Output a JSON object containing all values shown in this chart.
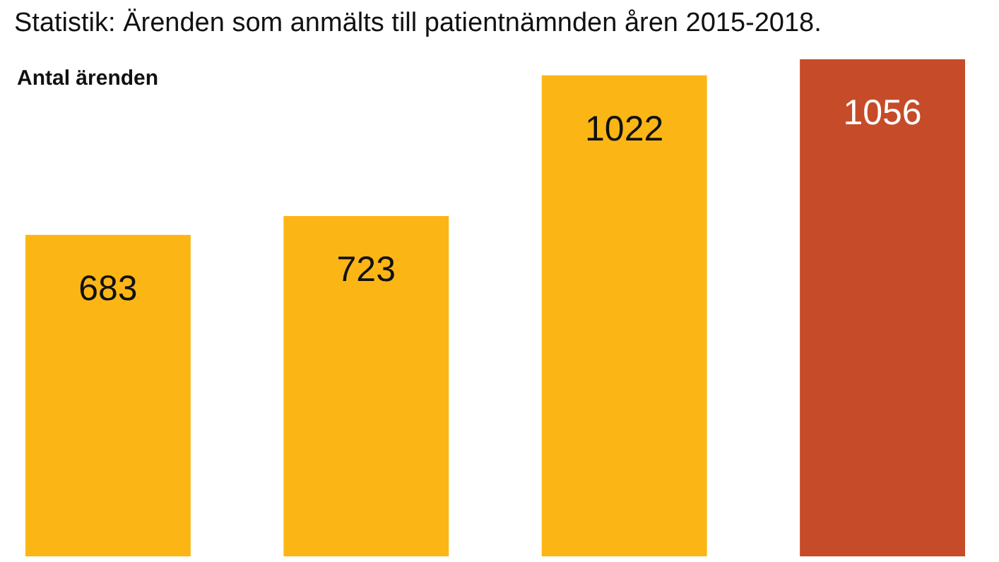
{
  "chart_data": {
    "type": "bar",
    "title": "Statistik: Ärenden som anmälts till patientnämnden åren 2015-2018.",
    "ylabel": "Antal ärenden",
    "categories": [
      null,
      null,
      null,
      null
    ],
    "values": [
      683,
      723,
      1022,
      1056
    ],
    "colors": [
      "#fbb615",
      "#fbb615",
      "#fbb615",
      "#c64b28"
    ],
    "data_labels": true
  }
}
